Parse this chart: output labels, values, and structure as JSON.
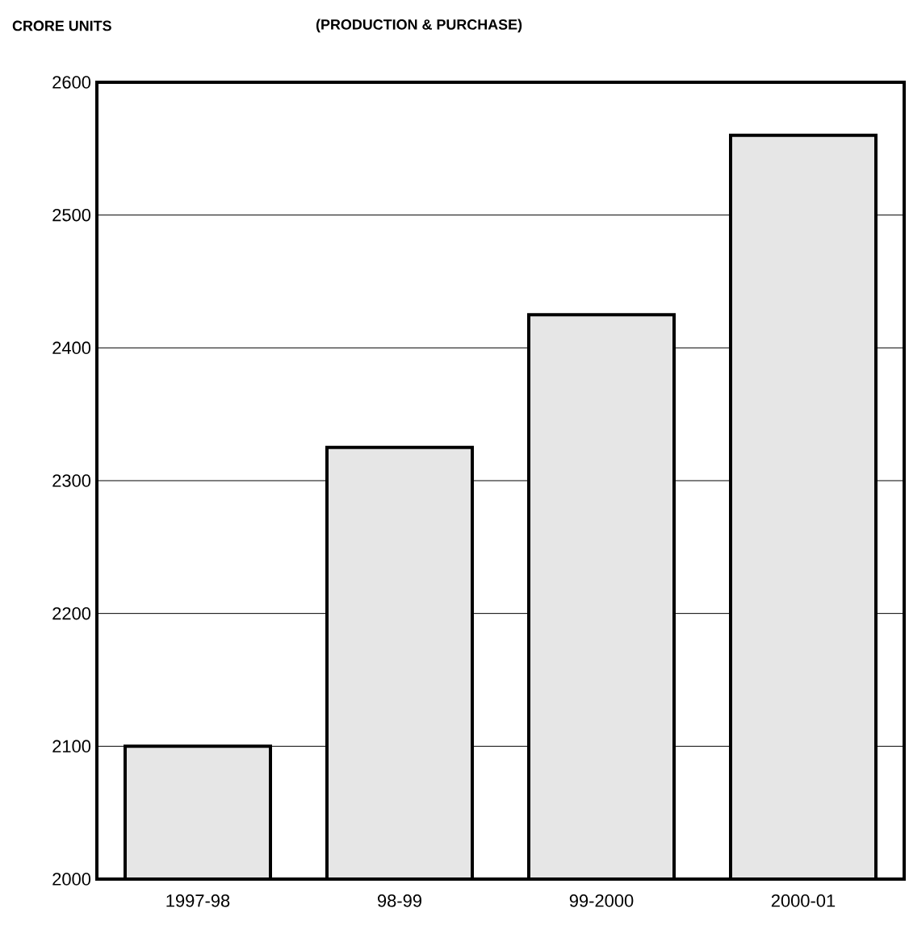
{
  "chart_data": {
    "type": "bar",
    "title": "(PRODUCTION & PURCHASE)",
    "ylabel": "CRORE UNITS",
    "categories": [
      "1997-98",
      "98-99",
      "99-2000",
      "2000-01"
    ],
    "values": [
      2100,
      2325,
      2425,
      2560
    ],
    "color": "#e6e6e6",
    "ylim": [
      2000,
      2600
    ],
    "yticks": [
      2000,
      2100,
      2200,
      2300,
      2400,
      2500,
      2600
    ],
    "grid": "y"
  }
}
